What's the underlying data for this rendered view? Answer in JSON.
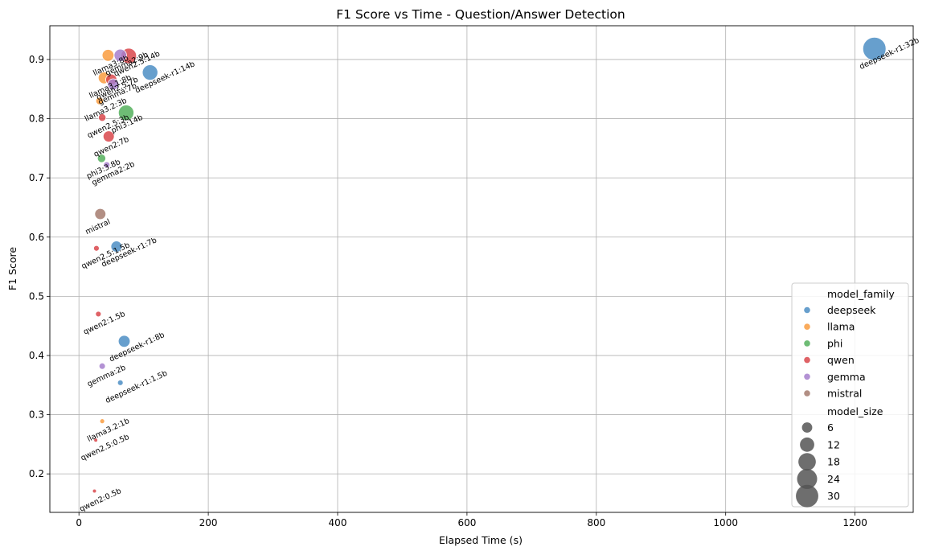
{
  "chart_data": {
    "type": "scatter",
    "title": "F1 Score vs Time - Question/Answer Detection",
    "xlabel": "Elapsed Time (s)",
    "ylabel": "F1 Score",
    "xlim": [
      -45,
      1290
    ],
    "ylim": [
      0.135,
      0.957
    ],
    "xticks": [
      0,
      200,
      400,
      600,
      800,
      1000,
      1200
    ],
    "yticks": [
      0.2,
      0.3,
      0.4,
      0.5,
      0.6,
      0.7,
      0.8,
      0.9
    ],
    "grid": true,
    "legend_position": "bottom-right",
    "hue_title": "model_family",
    "size_title": "model_size",
    "families": [
      {
        "name": "deepseek",
        "color": "#4c8ec4"
      },
      {
        "name": "llama",
        "color": "#f99c3f"
      },
      {
        "name": "phi",
        "color": "#55b05d"
      },
      {
        "name": "qwen",
        "color": "#d9474b"
      },
      {
        "name": "gemma",
        "color": "#a67fcc"
      },
      {
        "name": "mistral",
        "color": "#a47b6f"
      }
    ],
    "size_legend": [
      6,
      12,
      18,
      24,
      30
    ],
    "points": [
      {
        "label": "deepseek-r1:32b",
        "family": "deepseek",
        "size": 32,
        "x": 1230,
        "y": 0.918
      },
      {
        "label": "deepseek-r1:14b",
        "family": "deepseek",
        "size": 14,
        "x": 110,
        "y": 0.878
      },
      {
        "label": "deepseek-r1:7b",
        "family": "deepseek",
        "size": 7,
        "x": 58,
        "y": 0.584
      },
      {
        "label": "deepseek-r1:8b",
        "family": "deepseek",
        "size": 8,
        "x": 70,
        "y": 0.424
      },
      {
        "label": "deepseek-r1:1.5b",
        "family": "deepseek",
        "size": 1.5,
        "x": 64,
        "y": 0.354
      },
      {
        "label": "llama3:8b",
        "family": "llama",
        "size": 8,
        "x": 45,
        "y": 0.907
      },
      {
        "label": "llama3.1:8b",
        "family": "llama",
        "size": 8,
        "x": 39,
        "y": 0.869
      },
      {
        "label": "llama3.2:3b",
        "family": "llama",
        "size": 3,
        "x": 32,
        "y": 0.83
      },
      {
        "label": "llama3.2:1b",
        "family": "llama",
        "size": 1,
        "x": 36,
        "y": 0.289
      },
      {
        "label": "phi3:14b",
        "family": "phi",
        "size": 14,
        "x": 73,
        "y": 0.81
      },
      {
        "label": "phi3:3.8b",
        "family": "phi",
        "size": 3.8,
        "x": 35,
        "y": 0.733
      },
      {
        "label": "qwen2.5:14b",
        "family": "qwen",
        "size": 14,
        "x": 77,
        "y": 0.906
      },
      {
        "label": "qwen2.5:7b",
        "family": "qwen",
        "size": 7,
        "x": 50,
        "y": 0.866
      },
      {
        "label": "qwen2.5:3b",
        "family": "qwen",
        "size": 3,
        "x": 36,
        "y": 0.802
      },
      {
        "label": "qwen2:7b",
        "family": "qwen",
        "size": 7,
        "x": 46,
        "y": 0.77
      },
      {
        "label": "qwen2.5:1.5b",
        "family": "qwen",
        "size": 1.5,
        "x": 27,
        "y": 0.581
      },
      {
        "label": "qwen2:1.5b",
        "family": "qwen",
        "size": 1.5,
        "x": 30,
        "y": 0.47
      },
      {
        "label": "qwen2.5:0.5b",
        "family": "qwen",
        "size": 0.5,
        "x": 26,
        "y": 0.257
      },
      {
        "label": "qwen2:0.5b",
        "family": "qwen",
        "size": 0.5,
        "x": 24,
        "y": 0.171
      },
      {
        "label": "gemma2:9b",
        "family": "gemma",
        "size": 9,
        "x": 64,
        "y": 0.907
      },
      {
        "label": "gemma:7b",
        "family": "gemma",
        "size": 7,
        "x": 53,
        "y": 0.858
      },
      {
        "label": "gemma2:2b",
        "family": "gemma",
        "size": 2,
        "x": 43,
        "y": 0.722
      },
      {
        "label": "gemma:2b",
        "family": "gemma",
        "size": 2,
        "x": 36,
        "y": 0.382
      },
      {
        "label": "mistral",
        "family": "mistral",
        "size": 7,
        "x": 33,
        "y": 0.639
      }
    ]
  }
}
